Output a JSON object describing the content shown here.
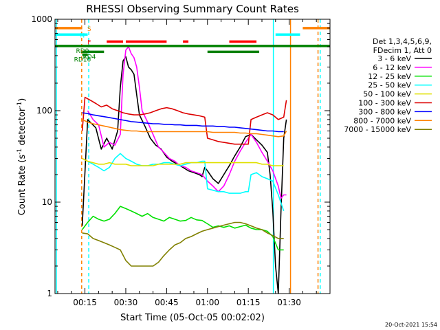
{
  "chart_data": {
    "type": "line",
    "title": "RHESSI Observing Summary Count Rates",
    "xlabel": "Start Time (05-Oct-05 00:02:02)",
    "ylabel_main": "Count Rate (s",
    "ylabel_sup": "-1",
    "ylabel_mid": " detector",
    "ylabel_end": ")",
    "yscale": "log",
    "xlim": [
      4,
      105
    ],
    "ylim": [
      1,
      1000
    ],
    "x_ticks": [
      15,
      30,
      45,
      60,
      75,
      90
    ],
    "x_tick_labels": [
      "00:15",
      "00:30",
      "00:45",
      "01:00",
      "01:15",
      "01:30"
    ],
    "y_ticks": [
      1,
      10,
      100,
      1000
    ],
    "y_tick_labels": [
      "1",
      "10",
      "100",
      "1000"
    ],
    "legend_header": [
      "Det 1,3,4,5,6,9,",
      "FDecim 1, Att 0"
    ],
    "footer_date": "20-Oct-2021 15:54",
    "series": [
      {
        "name": "3 - 6 keV",
        "color": "#000000",
        "x": [
          14,
          16,
          19,
          21,
          23,
          25,
          27,
          28,
          29,
          30,
          31,
          32,
          33,
          34,
          35,
          37,
          39,
          41,
          43,
          45,
          47,
          49,
          51,
          53,
          55,
          57,
          58,
          59,
          60,
          62,
          64,
          66,
          68,
          70,
          72,
          74,
          76,
          78,
          80,
          82,
          83,
          84,
          85,
          86,
          87,
          88,
          89
        ],
        "y": [
          5.5,
          80,
          65,
          38,
          50,
          38,
          60,
          180,
          350,
          390,
          300,
          280,
          250,
          150,
          90,
          68,
          50,
          42,
          38,
          31,
          28,
          26,
          24,
          22,
          21,
          20,
          19,
          24,
          22,
          18,
          16,
          20,
          25,
          32,
          40,
          52,
          55,
          48,
          42,
          35,
          20,
          8,
          2,
          1,
          8,
          50,
          80
        ]
      },
      {
        "name": "6 - 12 keV",
        "color": "#ff00ff",
        "x": [
          16,
          18,
          20,
          22,
          24,
          26,
          28,
          29,
          30,
          31,
          32,
          33,
          34,
          35,
          36,
          38,
          40,
          42,
          44,
          46,
          48,
          50,
          52,
          54,
          56,
          58,
          60,
          62,
          64,
          66,
          68,
          70,
          72,
          74,
          76,
          78,
          80,
          82,
          84,
          86,
          87,
          88,
          89
        ],
        "y": [
          100,
          80,
          70,
          40,
          45,
          42,
          55,
          250,
          460,
          500,
          420,
          380,
          300,
          180,
          100,
          75,
          55,
          40,
          35,
          30,
          28,
          25,
          24,
          22,
          21,
          20,
          17,
          15,
          13,
          15,
          20,
          28,
          36,
          45,
          55,
          45,
          35,
          28,
          22,
          15,
          11,
          12,
          12
        ]
      },
      {
        "name": "12 - 25 keV",
        "color": "#00e000",
        "x": [
          14,
          16,
          18,
          20,
          22,
          24,
          26,
          28,
          30,
          32,
          34,
          36,
          38,
          40,
          42,
          44,
          46,
          48,
          50,
          52,
          54,
          56,
          58,
          60,
          62,
          64,
          66,
          68,
          70,
          72,
          74,
          76,
          78,
          80,
          82,
          84,
          86,
          88
        ],
        "y": [
          5,
          6,
          7,
          6.5,
          6.2,
          6.5,
          7.5,
          9,
          8.5,
          8,
          7.5,
          7,
          7.5,
          6.8,
          6.5,
          6.2,
          6.8,
          6.5,
          6.2,
          6.3,
          6.8,
          6.4,
          6.3,
          5.8,
          5.3,
          5.5,
          5.3,
          5.5,
          5.2,
          5.4,
          5.6,
          5.2,
          5,
          5,
          4.8,
          4.2,
          3,
          3
        ]
      },
      {
        "name": "25 - 50 keV",
        "color": "#00ffff",
        "x": [
          16,
          18,
          20,
          22,
          24,
          26,
          28,
          30,
          32,
          34,
          36,
          38,
          40,
          42,
          44,
          46,
          48,
          50,
          52,
          54,
          56,
          58,
          59,
          60,
          62,
          64,
          66,
          68,
          70,
          72,
          74,
          75,
          76,
          78,
          80,
          82,
          84,
          86,
          88
        ],
        "y": [
          28,
          26,
          24,
          22,
          24,
          30,
          34,
          30,
          28,
          26,
          25,
          25,
          26,
          26,
          27,
          27,
          26,
          25,
          26,
          27,
          27,
          28,
          28,
          14,
          13.5,
          13,
          13,
          12.5,
          12.5,
          12.5,
          13,
          13,
          20,
          21,
          19,
          18,
          17,
          12,
          8
        ]
      },
      {
        "name": "50 - 100 keV",
        "color": "#e0e000",
        "x": [
          14,
          16,
          18,
          20,
          22,
          24,
          26,
          28,
          30,
          32,
          34,
          36,
          38,
          40,
          42,
          44,
          46,
          48,
          50,
          52,
          54,
          56,
          58,
          59,
          60,
          62,
          64,
          66,
          68,
          70,
          72,
          74,
          76,
          78,
          80,
          82,
          84,
          86,
          88
        ],
        "y": [
          30,
          28,
          27,
          26,
          26,
          27,
          26,
          26,
          26,
          25,
          25,
          25,
          25,
          25,
          26,
          26,
          26,
          26,
          26,
          27,
          27,
          27,
          27,
          27,
          27,
          27,
          27,
          27,
          27,
          27,
          27,
          27,
          27,
          27,
          26,
          26,
          25,
          25,
          25
        ]
      },
      {
        "name": "100 - 300 keV",
        "color": "#dd0000",
        "x": [
          14,
          15,
          17,
          19,
          21,
          23,
          25,
          27,
          29,
          31,
          33,
          35,
          37,
          39,
          41,
          43,
          45,
          47,
          49,
          51,
          53,
          55,
          57,
          59,
          60,
          62,
          64,
          66,
          68,
          70,
          72,
          74,
          75,
          76,
          78,
          80,
          82,
          84,
          86,
          88,
          89
        ],
        "y": [
          60,
          140,
          130,
          120,
          110,
          115,
          105,
          100,
          95,
          92,
          90,
          90,
          92,
          95,
          100,
          105,
          108,
          105,
          100,
          95,
          92,
          90,
          88,
          85,
          50,
          48,
          46,
          45,
          44,
          43,
          43,
          43,
          43,
          80,
          85,
          90,
          95,
          90,
          80,
          85,
          130
        ]
      },
      {
        "name": "300 - 800 keV",
        "color": "#0000ff",
        "x": [
          14,
          16,
          18,
          20,
          22,
          24,
          26,
          28,
          30,
          32,
          34,
          36,
          38,
          40,
          42,
          44,
          46,
          48,
          50,
          52,
          54,
          56,
          58,
          60,
          62,
          64,
          66,
          68,
          70,
          72,
          74,
          76,
          78,
          80,
          82,
          84,
          86,
          88
        ],
        "y": [
          95,
          93,
          90,
          88,
          86,
          84,
          82,
          80,
          78,
          76,
          75,
          74,
          73,
          72,
          72,
          71,
          71,
          70,
          70,
          69,
          69,
          69,
          68,
          68,
          68,
          67,
          67,
          66,
          66,
          65,
          64,
          63,
          62,
          61,
          60,
          60,
          59,
          59
        ]
      },
      {
        "name": "800 - 7000 keV",
        "color": "#ff8000",
        "x": [
          14,
          16,
          18,
          20,
          22,
          24,
          26,
          28,
          30,
          32,
          34,
          36,
          38,
          40,
          42,
          44,
          46,
          48,
          50,
          52,
          54,
          56,
          58,
          60,
          62,
          64,
          66,
          68,
          70,
          72,
          74,
          76,
          78,
          80,
          82,
          84,
          86,
          88,
          89
        ],
        "y": [
          80,
          75,
          72,
          70,
          68,
          66,
          64,
          62,
          61,
          60,
          60,
          59,
          59,
          59,
          59,
          59,
          59,
          59,
          59,
          59,
          59,
          59,
          59,
          59,
          58,
          58,
          58,
          58,
          58,
          57,
          57,
          56,
          56,
          55,
          54,
          53,
          52,
          53,
          60
        ]
      },
      {
        "name": "7000 - 15000 keV",
        "color": "#808000",
        "x": [
          14,
          16,
          18,
          20,
          22,
          24,
          26,
          28,
          30,
          32,
          34,
          36,
          38,
          40,
          42,
          44,
          46,
          48,
          50,
          52,
          54,
          56,
          58,
          60,
          62,
          64,
          66,
          68,
          70,
          72,
          74,
          76,
          78,
          80,
          82,
          84,
          86,
          88
        ],
        "y": [
          4.6,
          4.5,
          4,
          3.8,
          3.6,
          3.4,
          3.2,
          3,
          2.3,
          2,
          2,
          2,
          2,
          2,
          2.2,
          2.6,
          3,
          3.4,
          3.6,
          4,
          4.2,
          4.5,
          4.8,
          5,
          5.2,
          5.4,
          5.6,
          5.8,
          6,
          6,
          5.8,
          5.5,
          5.2,
          5,
          4.6,
          4.3,
          4,
          4
        ]
      }
    ],
    "flag_rows": [
      {
        "label": "S",
        "color": "#ff8000",
        "y": 800,
        "segments": [
          [
            4,
            14
          ],
          [
            95,
            105
          ]
        ]
      },
      {
        "label": "N",
        "color": "#00ffff",
        "y": 680,
        "segments": [
          [
            4,
            16
          ],
          [
            85,
            94
          ]
        ]
      },
      {
        "label": "F",
        "color": "#ff0000",
        "y": 570,
        "segments": [
          [
            23,
            29
          ],
          [
            30,
            45
          ],
          [
            51,
            53
          ],
          [
            68,
            78
          ]
        ]
      },
      {
        "label": "RD0",
        "color": "#008000",
        "y": 510,
        "segments": [
          [
            4,
            105
          ]
        ]
      },
      {
        "label": "RD4",
        "color": "#008000",
        "y": 440,
        "segments": [
          [
            14,
            22
          ],
          [
            60,
            79
          ]
        ]
      },
      {
        "label": "RD16",
        "color": "#008000",
        "y": 410,
        "segments": [
          [
            14,
            16
          ]
        ]
      }
    ],
    "vertical_lines": [
      {
        "x": 4.5,
        "color": "#00ffff",
        "style": "solid"
      },
      {
        "x": 13.8,
        "color": "#ff8000",
        "style": "dashed"
      },
      {
        "x": 16.4,
        "color": "#00ffff",
        "style": "dashed"
      },
      {
        "x": 84.2,
        "color": "#00ffff",
        "style": "solid"
      },
      {
        "x": 90.5,
        "color": "#ff8000",
        "style": "solid"
      },
      {
        "x": 100.6,
        "color": "#ff8000",
        "style": "dashed"
      },
      {
        "x": 101.4,
        "color": "#00ffff",
        "style": "dashed"
      }
    ]
  }
}
